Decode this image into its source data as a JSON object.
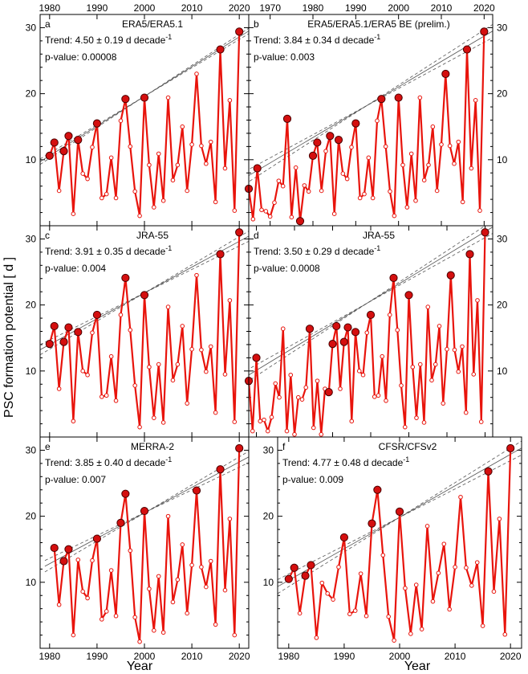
{
  "figure": {
    "ylabel": "PSC formation potential [ d ]",
    "xlabel": "Year"
  },
  "chart_data": [
    {
      "type": "line",
      "panel_id": "a",
      "title": "ERA5/ERA5.1",
      "trend_text": "Trend: 4.50 ± 0.19 d decade",
      "trend_unit_exp": "-1",
      "pvalue_text": "p-value: 0.00008",
      "xlim": [
        1978,
        2022
      ],
      "ylim": [
        0,
        32
      ],
      "x_ticks": [
        1980,
        1990,
        2000,
        2010,
        2020
      ],
      "y_ticks": [
        10,
        20,
        30
      ],
      "x": [
        1980,
        1981,
        1982,
        1983,
        1984,
        1985,
        1986,
        1987,
        1988,
        1989,
        1990,
        1991,
        1992,
        1993,
        1994,
        1995,
        1996,
        1997,
        1998,
        1999,
        2000,
        2001,
        2002,
        2003,
        2004,
        2005,
        2006,
        2007,
        2008,
        2009,
        2010,
        2011,
        2012,
        2013,
        2014,
        2015,
        2016,
        2017,
        2018,
        2019,
        2020
      ],
      "values": [
        10.6,
        12.6,
        5.3,
        11.3,
        13.6,
        1.8,
        13.0,
        7.9,
        7.1,
        11.9,
        15.5,
        4.2,
        4.8,
        10.3,
        4.2,
        15.9,
        19.2,
        12.0,
        5.2,
        1.5,
        19.4,
        9.2,
        2.8,
        10.9,
        3.8,
        19.4,
        6.9,
        9.2,
        15.0,
        5.3,
        12.3,
        23.0,
        12.1,
        9.4,
        12.7,
        3.6,
        26.7,
        8.7,
        19.0,
        2.3,
        29.4
      ],
      "highlight_years": [
        1980,
        1981,
        1983,
        1984,
        1986,
        1990,
        1996,
        2000,
        2016,
        2020
      ],
      "trend_line": {
        "x0": 1980,
        "y0": 10.6,
        "slope_per_decade": 4.5,
        "slope_unc": 0.19
      }
    },
    {
      "type": "line",
      "panel_id": "b",
      "title": "ERA5/ERA5.1/ERA5 BE (prelim.)",
      "trend_text": "Trend: 3.84 ± 0.34 d decade",
      "trend_unit_exp": "-1",
      "pvalue_text": "p-value: 0.003",
      "xlim": [
        1965,
        2022
      ],
      "ylim": [
        0,
        32
      ],
      "x_ticks": [
        1970,
        1980,
        1990,
        2000,
        2010,
        2020
      ],
      "y_ticks": [
        10,
        20,
        30
      ],
      "x": [
        1965,
        1966,
        1967,
        1968,
        1969,
        1970,
        1971,
        1972,
        1973,
        1974,
        1975,
        1976,
        1977,
        1978,
        1979,
        1980,
        1981,
        1982,
        1983,
        1984,
        1985,
        1986,
        1987,
        1988,
        1989,
        1990,
        1991,
        1992,
        1993,
        1994,
        1995,
        1996,
        1997,
        1998,
        1999,
        2000,
        2001,
        2002,
        2003,
        2004,
        2005,
        2006,
        2007,
        2008,
        2009,
        2010,
        2011,
        2012,
        2013,
        2014,
        2015,
        2016,
        2017,
        2018,
        2019,
        2020
      ],
      "values": [
        5.6,
        1.0,
        8.7,
        2.4,
        2.2,
        1.4,
        3.5,
        6.8,
        6.0,
        16.2,
        1.3,
        8.8,
        0.7,
        6.1,
        5.2,
        10.6,
        12.6,
        5.3,
        11.3,
        13.6,
        1.8,
        13.0,
        7.9,
        7.1,
        11.9,
        15.5,
        4.2,
        4.8,
        10.3,
        4.2,
        15.9,
        19.2,
        12.0,
        5.2,
        1.5,
        19.4,
        9.2,
        2.8,
        10.9,
        3.8,
        19.4,
        6.9,
        9.2,
        15.0,
        5.3,
        12.3,
        23.0,
        12.1,
        9.4,
        12.7,
        3.6,
        26.7,
        8.7,
        19.0,
        2.3,
        29.4
      ],
      "highlight_years": [
        1965,
        1967,
        1974,
        1977,
        1980,
        1981,
        1984,
        1986,
        1990,
        1996,
        2000,
        2011,
        2016,
        2020
      ],
      "trend_line": {
        "x0": 1965,
        "y0": 7.6,
        "slope_per_decade": 3.84,
        "slope_unc": 0.34
      }
    },
    {
      "type": "line",
      "panel_id": "c",
      "title": "JRA-55",
      "trend_text": "Trend: 3.91 ± 0.35 d decade",
      "trend_unit_exp": "-1",
      "pvalue_text": "p-value: 0.004",
      "xlim": [
        1978,
        2022
      ],
      "ylim": [
        0,
        32
      ],
      "x_ticks": [
        1980,
        1990,
        2000,
        2010,
        2020
      ],
      "y_ticks": [
        10,
        20,
        30
      ],
      "x": [
        1980,
        1981,
        1982,
        1983,
        1984,
        1985,
        1986,
        1987,
        1988,
        1989,
        1990,
        1991,
        1992,
        1993,
        1994,
        1995,
        1996,
        1997,
        1998,
        1999,
        2000,
        2001,
        2002,
        2003,
        2004,
        2005,
        2006,
        2007,
        2008,
        2009,
        2010,
        2011,
        2012,
        2013,
        2014,
        2015,
        2016,
        2017,
        2018,
        2019,
        2020
      ],
      "values": [
        14.1,
        16.8,
        7.3,
        14.4,
        16.6,
        2.4,
        15.9,
        10.0,
        9.4,
        15.8,
        18.5,
        6.1,
        6.3,
        12.2,
        5.5,
        18.5,
        24.1,
        16.2,
        7.8,
        1.5,
        21.5,
        10.6,
        2.9,
        11.0,
        2.2,
        19.7,
        8.6,
        11.0,
        16.8,
        5.1,
        13.3,
        24.5,
        13.2,
        9.9,
        13.7,
        3.7,
        27.7,
        9.5,
        20.7,
        2.3,
        31.0
      ],
      "highlight_years": [
        1980,
        1981,
        1983,
        1984,
        1986,
        1990,
        1996,
        2000,
        2016,
        2020
      ],
      "trend_line": {
        "x0": 1980,
        "y0": 14.0,
        "slope_per_decade": 3.91,
        "slope_unc": 0.35
      }
    },
    {
      "type": "line",
      "panel_id": "d",
      "title": "JRA-55",
      "trend_text": "Trend: 3.50 ± 0.29 d decade",
      "trend_unit_exp": "-1",
      "pvalue_text": "p-value: 0.0008",
      "xlim": [
        1958,
        2022
      ],
      "ylim": [
        0,
        32
      ],
      "x_ticks": [
        1960,
        1970,
        1980,
        1990,
        2000,
        2010,
        2020
      ],
      "y_ticks": [
        10,
        20,
        30
      ],
      "x": [
        1958,
        1959,
        1960,
        1961,
        1962,
        1963,
        1964,
        1965,
        1966,
        1967,
        1968,
        1969,
        1970,
        1971,
        1972,
        1973,
        1974,
        1975,
        1976,
        1977,
        1978,
        1979,
        1980,
        1981,
        1982,
        1983,
        1984,
        1985,
        1986,
        1987,
        1988,
        1989,
        1990,
        1991,
        1992,
        1993,
        1994,
        1995,
        1996,
        1997,
        1998,
        1999,
        2000,
        2001,
        2002,
        2003,
        2004,
        2005,
        2006,
        2007,
        2008,
        2009,
        2010,
        2011,
        2012,
        2013,
        2014,
        2015,
        2016,
        2017,
        2018,
        2019,
        2020
      ],
      "values": [
        8.5,
        0.9,
        12.0,
        2.4,
        2.6,
        0.9,
        3.0,
        8.1,
        6.0,
        16.4,
        0.9,
        9.4,
        0.4,
        6.0,
        5.7,
        7.5,
        16.4,
        1.4,
        8.5,
        0.4,
        7.3,
        6.8,
        14.1,
        16.8,
        7.3,
        14.4,
        16.6,
        2.4,
        15.9,
        10.0,
        9.4,
        15.8,
        18.5,
        6.1,
        6.3,
        12.2,
        5.5,
        18.5,
        24.1,
        16.2,
        7.8,
        1.5,
        21.5,
        10.6,
        2.9,
        11.0,
        2.2,
        19.7,
        8.6,
        11.0,
        16.8,
        5.1,
        13.3,
        24.5,
        13.2,
        9.9,
        13.7,
        3.7,
        27.7,
        9.5,
        20.7,
        2.3,
        31.0
      ],
      "highlight_years": [
        1958,
        1960,
        1974,
        1979,
        1980,
        1981,
        1983,
        1984,
        1986,
        1990,
        1996,
        2000,
        2011,
        2016,
        2020
      ],
      "trend_line": {
        "x0": 1958,
        "y0": 9.4,
        "slope_per_decade": 3.5,
        "slope_unc": 0.29
      }
    },
    {
      "type": "line",
      "panel_id": "e",
      "title": "MERRA-2",
      "trend_text": "Trend: 3.85 ± 0.40 d decade",
      "trend_unit_exp": "-1",
      "pvalue_text": "p-value: 0.007",
      "xlim": [
        1978,
        2022
      ],
      "ylim": [
        0,
        32
      ],
      "x_ticks": [
        1980,
        1990,
        2000,
        2010,
        2020
      ],
      "y_ticks": [
        10,
        20,
        30
      ],
      "x": [
        1981,
        1982,
        1983,
        1984,
        1985,
        1986,
        1987,
        1988,
        1989,
        1990,
        1991,
        1992,
        1993,
        1994,
        1995,
        1996,
        1997,
        1998,
        1999,
        2000,
        2001,
        2002,
        2003,
        2004,
        2005,
        2006,
        2007,
        2008,
        2009,
        2010,
        2011,
        2012,
        2013,
        2014,
        2015,
        2016,
        2017,
        2018,
        2019,
        2020
      ],
      "values": [
        15.2,
        6.6,
        13.2,
        15.0,
        2.0,
        13.4,
        8.6,
        7.6,
        13.3,
        16.6,
        4.4,
        5.6,
        11.8,
        4.9,
        19.0,
        23.4,
        14.8,
        4.7,
        1.0,
        20.8,
        9.0,
        2.7,
        10.9,
        2.4,
        20.0,
        7.0,
        10.4,
        15.7,
        5.3,
        12.6,
        23.9,
        12.3,
        9.3,
        13.2,
        3.6,
        27.1,
        8.8,
        19.6,
        2.0,
        30.3
      ],
      "highlight_years": [
        1981,
        1983,
        1984,
        1990,
        1995,
        1996,
        2000,
        2011,
        2016,
        2020
      ],
      "trend_line": {
        "x0": 1981,
        "y0": 13.2,
        "slope_per_decade": 3.85,
        "slope_unc": 0.4
      }
    },
    {
      "type": "line",
      "panel_id": "f",
      "title": "CFSR/CFSv2",
      "trend_text": "Trend: 4.77 ± 0.48 d decade",
      "trend_unit_exp": "-1",
      "pvalue_text": "p-value: 0.009",
      "xlim": [
        1978,
        2022
      ],
      "ylim": [
        0,
        32
      ],
      "x_ticks": [
        1980,
        1990,
        2000,
        2010,
        2020
      ],
      "y_ticks": [
        10,
        20,
        30
      ],
      "x": [
        1980,
        1981,
        1982,
        1983,
        1984,
        1985,
        1986,
        1987,
        1988,
        1989,
        1990,
        1991,
        1992,
        1993,
        1994,
        1995,
        1996,
        1997,
        1998,
        1999,
        2000,
        2001,
        2002,
        2003,
        2004,
        2005,
        2006,
        2007,
        2008,
        2009,
        2010,
        2011,
        2012,
        2013,
        2014,
        2015,
        2016,
        2017,
        2018,
        2019,
        2020
      ],
      "values": [
        10.5,
        12.2,
        5.3,
        11.0,
        12.6,
        1.6,
        9.9,
        8.3,
        7.4,
        12.3,
        16.8,
        5.2,
        5.7,
        11.3,
        4.9,
        18.9,
        24.0,
        14.1,
        4.8,
        1.2,
        20.7,
        9.1,
        2.2,
        9.6,
        2.9,
        18.5,
        7.1,
        11.4,
        15.8,
        5.9,
        12.3,
        22.9,
        12.2,
        9.5,
        13.0,
        3.4,
        26.8,
        8.6,
        19.6,
        2.1,
        30.3
      ],
      "highlight_years": [
        1980,
        1981,
        1983,
        1984,
        1990,
        1995,
        1996,
        2000,
        2016,
        2020
      ],
      "trend_line": {
        "x0": 1980,
        "y0": 10.3,
        "slope_per_decade": 4.77,
        "slope_unc": 0.48
      }
    }
  ]
}
